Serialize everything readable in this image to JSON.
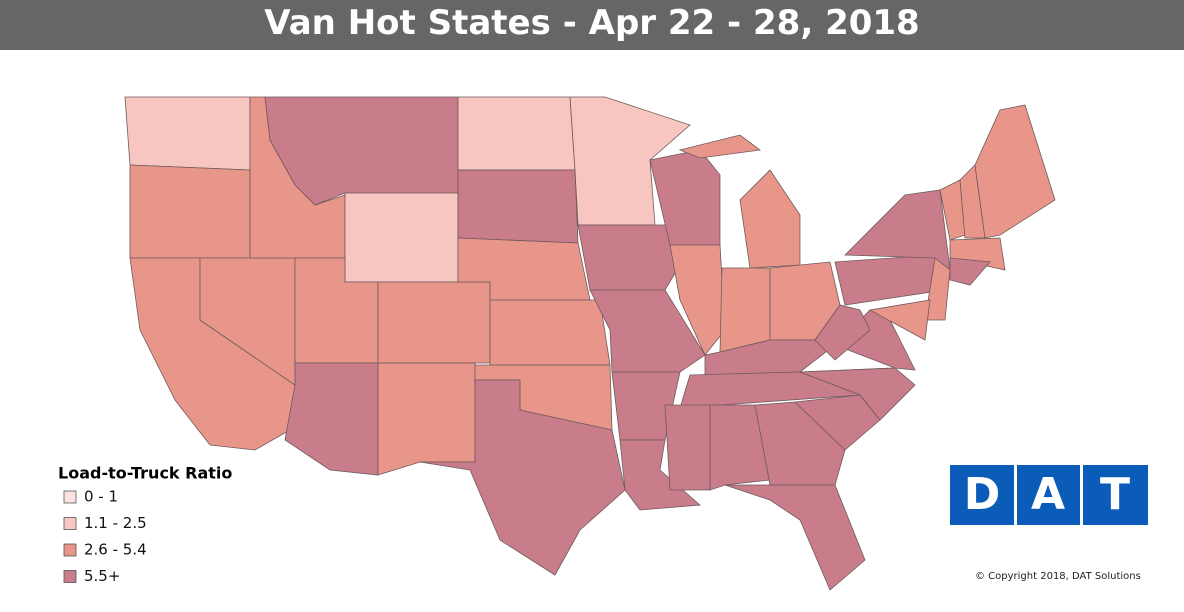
{
  "header": {
    "title": "Van Hot States - Apr 22 - 28, 2018"
  },
  "legend": {
    "title": "Load-to-Truck Ratio",
    "items": [
      {
        "label": "0 - 1",
        "color": "#fce3e2"
      },
      {
        "label": "1.1 - 2.5",
        "color": "#f8c6c0"
      },
      {
        "label": "2.6 - 5.4",
        "color": "#e9968a"
      },
      {
        "label": "5.5+",
        "color": "#c97d8a"
      }
    ]
  },
  "logo": {
    "letters": [
      "D",
      "A",
      "T"
    ]
  },
  "copyright": "© Copyright 2018, DAT Solutions"
}
